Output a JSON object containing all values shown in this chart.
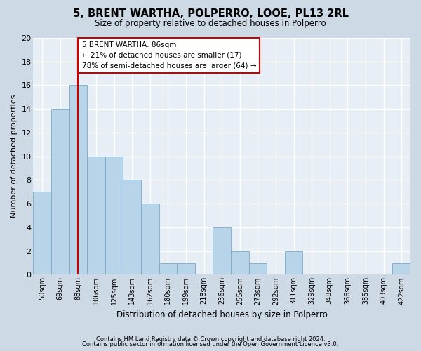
{
  "title1": "5, BRENT WARTHA, POLPERRO, LOOE, PL13 2RL",
  "title2": "Size of property relative to detached houses in Polperro",
  "xlabel": "Distribution of detached houses by size in Polperro",
  "ylabel": "Number of detached properties",
  "categories": [
    "50sqm",
    "69sqm",
    "88sqm",
    "106sqm",
    "125sqm",
    "143sqm",
    "162sqm",
    "180sqm",
    "199sqm",
    "218sqm",
    "236sqm",
    "255sqm",
    "273sqm",
    "292sqm",
    "311sqm",
    "329sqm",
    "348sqm",
    "366sqm",
    "385sqm",
    "403sqm",
    "422sqm"
  ],
  "values": [
    7,
    14,
    16,
    10,
    10,
    8,
    6,
    1,
    1,
    0,
    4,
    2,
    1,
    0,
    2,
    0,
    0,
    0,
    0,
    0,
    1
  ],
  "bar_color": "#b8d4e8",
  "bar_edge_color": "#7aaac8",
  "highlight_index": 2,
  "highlight_line_color": "#cc0000",
  "ylim": [
    0,
    20
  ],
  "yticks": [
    0,
    2,
    4,
    6,
    8,
    10,
    12,
    14,
    16,
    18,
    20
  ],
  "annotation_text": "5 BRENT WARTHA: 86sqm\n← 21% of detached houses are smaller (17)\n78% of semi-detached houses are larger (64) →",
  "annotation_box_color": "#ffffff",
  "annotation_box_edge_color": "#cc0000",
  "footer1": "Contains HM Land Registry data © Crown copyright and database right 2024.",
  "footer2": "Contains public sector information licensed under the Open Government Licence v3.0.",
  "background_color": "#cdd9e5",
  "plot_background_color": "#e8eef5",
  "grid_color": "#ffffff"
}
